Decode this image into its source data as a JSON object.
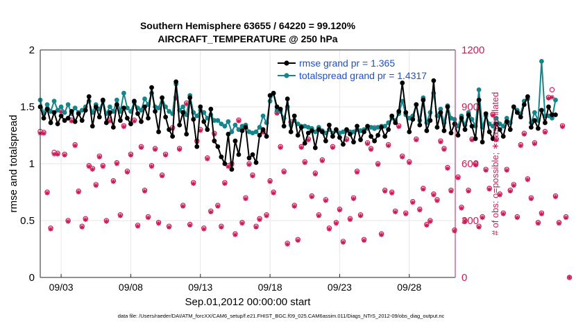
{
  "chart_data": {
    "type": "line",
    "title_line1": "Southern Hemisphere 63655 / 64220 = 99.120%",
    "title_line2": "AIRCRAFT_TEMPERATURE @ 250 hPa",
    "xlabel": "Sep.01,2012 00:00:00 start",
    "ylabel_left": "rmse and totalspread",
    "ylabel_right": "# of obs: o=possible; ∗=assimilated",
    "ylim_left": [
      0,
      2
    ],
    "ylim_right": [
      0,
      1200
    ],
    "xlim_days": [
      1.5,
      31.3
    ],
    "left_ticks": [
      "0",
      "0.5",
      "1",
      "1.5",
      "2"
    ],
    "right_ticks": [
      "0",
      "300",
      "600",
      "900",
      "1200"
    ],
    "x_ticks": [
      {
        "day": 3,
        "label": "09/03"
      },
      {
        "day": 8,
        "label": "09/08"
      },
      {
        "day": 13,
        "label": "09/13"
      },
      {
        "day": 18,
        "label": "09/18"
      },
      {
        "day": 23,
        "label": "09/23"
      },
      {
        "day": 28,
        "label": "09/28"
      }
    ],
    "colors": {
      "rmse": "#000000",
      "totalspread": "#14858a",
      "obs": "#cc1a55",
      "legend_text": "#1a4fd6"
    },
    "legend": {
      "placement": "top-right",
      "rmse_label": "rmse grand pr = 1.365",
      "spread_label": "totalspread grand pr = 1.4317"
    },
    "series": [
      {
        "name": "rmse",
        "axis": "left",
        "x_start_day": 1.5,
        "x_step_day": 0.25,
        "values": [
          1.5,
          1.4,
          1.48,
          1.36,
          1.45,
          1.35,
          1.42,
          1.38,
          1.4,
          1.46,
          1.37,
          1.44,
          1.38,
          1.47,
          1.59,
          1.33,
          1.5,
          1.41,
          1.56,
          1.36,
          1.45,
          1.32,
          1.52,
          1.38,
          1.49,
          1.4,
          1.35,
          1.55,
          1.44,
          1.37,
          1.5,
          1.4,
          1.67,
          1.46,
          1.28,
          1.58,
          1.41,
          1.3,
          1.24,
          1.72,
          1.34,
          1.45,
          1.26,
          1.58,
          1.39,
          1.15,
          1.5,
          1.37,
          1.3,
          1.48,
          1.2,
          1.15,
          1.06,
          1.0,
          1.26,
          0.95,
          1.2,
          1.08,
          1.29,
          1.32,
          1.05,
          1.08,
          1.01,
          1.25,
          1.3,
          1.24,
          1.6,
          1.62,
          1.5,
          1.48,
          1.33,
          1.57,
          1.28,
          1.42,
          1.25,
          1.32,
          1.18,
          1.27,
          1.29,
          1.14,
          1.3,
          1.28,
          1.2,
          1.34,
          1.24,
          1.3,
          1.23,
          1.17,
          1.3,
          1.26,
          1.19,
          1.33,
          1.21,
          1.28,
          1.33,
          1.24,
          1.2,
          1.25,
          1.32,
          1.24,
          1.3,
          1.42,
          1.36,
          1.46,
          1.71,
          1.45,
          1.28,
          1.39,
          1.52,
          1.34,
          1.56,
          1.29,
          1.38,
          1.73,
          1.32,
          1.45,
          1.29,
          1.5,
          1.27,
          1.35,
          1.25,
          1.4,
          1.3,
          1.43,
          1.33,
          1.22,
          1.56,
          1.19,
          1.44,
          1.28,
          1.22,
          1.35,
          1.3,
          1.24,
          1.37,
          1.3,
          1.5,
          1.45,
          1.41,
          1.52,
          1.59,
          1.32,
          1.38,
          1.31,
          1.47,
          1.36,
          1.5,
          1.43,
          1.43
        ]
      },
      {
        "name": "totalspread",
        "axis": "left",
        "x_start_day": 1.5,
        "x_step_day": 0.25,
        "values": [
          1.56,
          1.44,
          1.52,
          1.46,
          1.55,
          1.47,
          1.5,
          1.45,
          1.52,
          1.44,
          1.49,
          1.45,
          1.47,
          1.5,
          1.55,
          1.45,
          1.52,
          1.48,
          1.55,
          1.44,
          1.5,
          1.46,
          1.56,
          1.46,
          1.62,
          1.49,
          1.46,
          1.54,
          1.49,
          1.47,
          1.57,
          1.52,
          1.62,
          1.5,
          1.49,
          1.58,
          1.5,
          1.46,
          1.44,
          1.7,
          1.47,
          1.5,
          1.43,
          1.6,
          1.45,
          1.42,
          1.47,
          1.45,
          1.4,
          1.43,
          1.38,
          1.38,
          1.35,
          1.33,
          1.37,
          1.28,
          1.34,
          1.3,
          1.33,
          1.34,
          1.28,
          1.27,
          1.28,
          1.32,
          1.42,
          1.36,
          1.55,
          1.62,
          1.47,
          1.46,
          1.4,
          1.5,
          1.34,
          1.38,
          1.35,
          1.33,
          1.33,
          1.32,
          1.31,
          1.28,
          1.32,
          1.29,
          1.27,
          1.3,
          1.27,
          1.29,
          1.27,
          1.28,
          1.29,
          1.28,
          1.28,
          1.3,
          1.29,
          1.3,
          1.31,
          1.32,
          1.31,
          1.32,
          1.33,
          1.33,
          1.36,
          1.4,
          1.38,
          1.44,
          1.55,
          1.43,
          1.4,
          1.42,
          1.52,
          1.38,
          1.58,
          1.36,
          1.45,
          1.62,
          1.42,
          1.48,
          1.36,
          1.51,
          1.4,
          1.39,
          1.33,
          1.42,
          1.34,
          1.45,
          1.39,
          1.33,
          1.65,
          1.32,
          1.42,
          1.35,
          1.33,
          1.4,
          1.35,
          1.33,
          1.4,
          1.36,
          1.5,
          1.47,
          1.44,
          1.55,
          1.57,
          1.36,
          1.45,
          1.38,
          1.9,
          1.42,
          1.42,
          1.4,
          1.56
        ]
      },
      {
        "name": "obs_possible",
        "axis": "right",
        "x_start_day": 1.5,
        "x_step_day": 0.25,
        "values": [
          770,
          765,
          450,
          260,
          660,
          655,
          880,
          650,
          300,
          830,
          700,
          455,
          270,
          310,
          590,
          575,
          490,
          640,
          590,
          300,
          830,
          510,
          605,
          330,
          800,
          560,
          650,
          830,
          275,
          690,
          460,
          320,
          590,
          680,
          290,
          540,
          650,
          270,
          790,
          950,
          680,
          380,
          920,
          280,
          500,
          720,
          780,
          260,
          630,
          350,
          760,
          380,
          270,
          500,
          590,
          600,
          230,
          830,
          290,
          420,
          600,
          540,
          270,
          310,
          770,
          330,
          510,
          450,
          870,
          690,
          560,
          180,
          820,
          380,
          200,
          690,
          610,
          730,
          430,
          550,
          330,
          620,
          410,
          260,
          690,
          290,
          360,
          190,
          730,
          310,
          420,
          560,
          330,
          200,
          710,
          680,
          790,
          600,
          230,
          460,
          700,
          450,
          350,
          800,
          640,
          340,
          610,
          400,
          730,
          360,
          470,
          280,
          300,
          440,
          410,
          720,
          680,
          580,
          460,
          250,
          530,
          370,
          300,
          460,
          730,
          600,
          270,
          320,
          570,
          470,
          860,
          730,
          440,
          340,
          570,
          460,
          490,
          320,
          700,
          760,
          520,
          420,
          710,
          290,
          340,
          770,
          950,
          990,
          430,
          290,
          800,
          320,
          0
        ]
      },
      {
        "name": "obs_assimilated",
        "axis": "right",
        "x_start_day": 1.5,
        "x_step_day": 0.25,
        "values": [
          760,
          760,
          445,
          255,
          650,
          650,
          875,
          645,
          295,
          825,
          695,
          450,
          265,
          305,
          585,
          570,
          485,
          635,
          585,
          295,
          825,
          505,
          600,
          325,
          795,
          555,
          645,
          825,
          270,
          685,
          455,
          315,
          585,
          675,
          285,
          535,
          645,
          265,
          785,
          945,
          675,
          375,
          915,
          275,
          495,
          715,
          775,
          255,
          625,
          345,
          755,
          375,
          265,
          495,
          585,
          595,
          225,
          825,
          285,
          415,
          595,
          535,
          265,
          305,
          765,
          325,
          505,
          445,
          865,
          685,
          555,
          175,
          815,
          375,
          195,
          685,
          605,
          725,
          425,
          545,
          325,
          615,
          405,
          255,
          685,
          285,
          355,
          185,
          725,
          305,
          415,
          555,
          325,
          195,
          705,
          675,
          785,
          595,
          225,
          455,
          695,
          445,
          345,
          795,
          635,
          335,
          605,
          395,
          725,
          355,
          465,
          275,
          295,
          435,
          405,
          715,
          675,
          575,
          455,
          245,
          525,
          365,
          295,
          455,
          725,
          595,
          265,
          315,
          565,
          465,
          855,
          725,
          435,
          335,
          565,
          455,
          485,
          315,
          695,
          755,
          515,
          415,
          705,
          285,
          335,
          765,
          945,
          950,
          425,
          285,
          795,
          315,
          0
        ]
      }
    ],
    "footer": "data file: /Users/raeder/DAI/ATM_forcXX/CAM6_setup/f.e21.FHIST_BGC.f09_025.CAM6assim.011/Diags_NTrS_2012-09/obs_diag_output.nc"
  }
}
